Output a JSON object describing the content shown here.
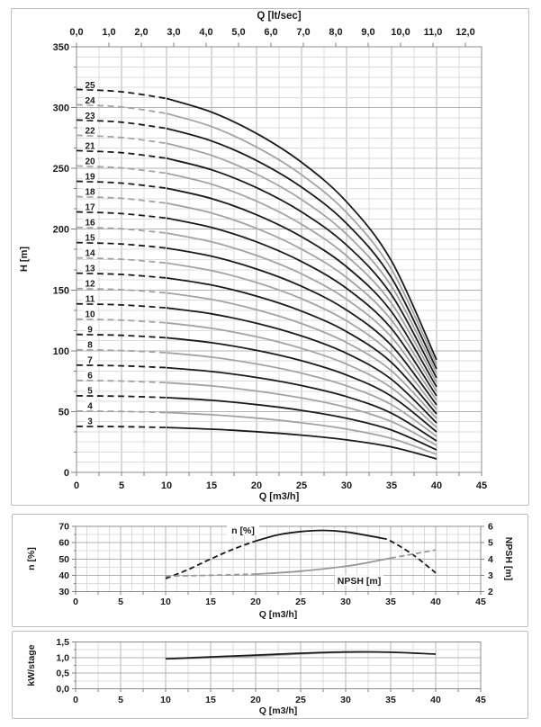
{
  "colors": {
    "black_curve": "#1a1a1a",
    "gray_curve": "#a3a3a3",
    "grid_minor": "#dcdcdc",
    "grid_major": "#b3b3b3",
    "axis_line": "#8c8c8c",
    "tick": "#7f7f7f",
    "text": "#1a1a1a"
  },
  "chart_data": [
    {
      "id": "head_chart",
      "type": "line",
      "top_axis": {
        "title": "Q [lt/sec]",
        "tick_values": [
          0,
          1,
          2,
          3,
          4,
          5,
          6,
          7,
          8,
          9,
          10,
          11,
          12
        ],
        "tick_labels": [
          "0,0",
          "1,0",
          "2,0",
          "3,0",
          "4,0",
          "5,0",
          "6,0",
          "7,0",
          "8,0",
          "9,0",
          "10,0",
          "11,0",
          "12,0"
        ],
        "m3h_per_unit": 3.6
      },
      "x_axis": {
        "title": "Q [m3/h]",
        "min": 0,
        "max": 45,
        "tick_values": [
          0,
          5,
          10,
          15,
          20,
          25,
          30,
          35,
          40,
          45
        ],
        "tick_labels": [
          "0",
          "5",
          "10",
          "15",
          "20",
          "25",
          "30",
          "35",
          "40",
          "45"
        ],
        "minor_step": 2.5
      },
      "y_axis": {
        "title": "H [m]",
        "min": 0,
        "max": 350,
        "tick_values": [
          0,
          50,
          100,
          150,
          200,
          250,
          300,
          350
        ],
        "tick_labels": [
          "0",
          "50",
          "100",
          "150",
          "200",
          "250",
          "300",
          "350"
        ],
        "minor_step": 8.3333,
        "minor_tick_step": 16.6667
      },
      "stages": [
        3,
        4,
        5,
        6,
        7,
        8,
        9,
        10,
        11,
        12,
        13,
        14,
        15,
        16,
        17,
        18,
        19,
        20,
        21,
        22,
        23,
        24,
        25
      ],
      "unit_head_curve": {
        "q": [
          0,
          5,
          10,
          15,
          20,
          25,
          30,
          35,
          40
        ],
        "h_per_stage": [
          12.6,
          12.52,
          12.3,
          11.85,
          11.15,
          10.2,
          8.9,
          6.95,
          3.7
        ]
      },
      "dashed_below_q": 10,
      "stage_label_q": 1.8
    },
    {
      "id": "efficiency_npsh_chart",
      "type": "line",
      "x_axis": {
        "title": "Q [m3/h]",
        "min": 0,
        "max": 45,
        "tick_values": [
          0,
          5,
          10,
          15,
          20,
          25,
          30,
          35,
          40,
          45
        ],
        "tick_labels": [
          "0",
          "5",
          "10",
          "15",
          "20",
          "25",
          "30",
          "35",
          "40",
          "45"
        ],
        "minor_step": 1.25
      },
      "y_left_axis": {
        "title": "n [%]",
        "min": 30,
        "max": 70,
        "tick_values": [
          30,
          40,
          50,
          60,
          70
        ],
        "tick_labels": [
          "30",
          "40",
          "50",
          "60",
          "70"
        ],
        "minor_step": 5
      },
      "y_right_axis": {
        "title": "NPSH [m]",
        "min": 2,
        "max": 6,
        "tick_values": [
          2,
          3,
          4,
          5,
          6
        ],
        "tick_labels": [
          "2",
          "3",
          "4",
          "5",
          "6"
        ]
      },
      "series": [
        {
          "name": "n [%]",
          "axis": "left",
          "color": "#1a1a1a",
          "q": [
            10,
            12.5,
            15,
            17.5,
            20,
            22.5,
            25,
            27.5,
            30,
            32.5,
            34,
            35,
            37.5,
            40
          ],
          "v": [
            38,
            43.5,
            50,
            56,
            61,
            64.8,
            66.8,
            67.5,
            66.6,
            64.3,
            62.8,
            61,
            52.5,
            41.5
          ],
          "solid_range": [
            20,
            34
          ],
          "label": {
            "text": "n [%]",
            "q": 18.6,
            "value": 67.8
          }
        },
        {
          "name": "NPSH [m]",
          "axis": "right",
          "color": "#989898",
          "q": [
            10,
            15,
            20,
            25,
            30,
            32.5,
            35,
            37.5,
            40
          ],
          "v": [
            2.95,
            3.0,
            3.07,
            3.25,
            3.55,
            3.78,
            4.05,
            4.3,
            4.55
          ],
          "solid_range": [
            20,
            35
          ],
          "label": {
            "text": "NPSH [m]",
            "q": 31.5,
            "value": 2.68
          }
        }
      ]
    },
    {
      "id": "power_chart",
      "type": "line",
      "x_axis": {
        "title": "Q [m3/h]",
        "min": 0,
        "max": 45,
        "tick_values": [
          0,
          5,
          10,
          15,
          20,
          25,
          30,
          35,
          40,
          45
        ],
        "tick_labels": [
          "0",
          "5",
          "10",
          "15",
          "20",
          "25",
          "30",
          "35",
          "40",
          "45"
        ],
        "minor_step": 2.5
      },
      "y_axis": {
        "title": "kW/stage",
        "min": 0,
        "max": 1.5,
        "tick_values": [
          0,
          0.5,
          1,
          1.5
        ],
        "tick_labels": [
          "0,0",
          "0,5",
          "1,0",
          "1,5"
        ],
        "minor_step": 0.25
      },
      "series": [
        {
          "name": "kW/stage gray",
          "color": "#a6a6a6",
          "q": [
            10,
            15,
            20,
            25,
            30,
            35,
            40
          ],
          "v": [
            0.95,
            0.99,
            1.04,
            1.11,
            1.16,
            1.17,
            1.12
          ],
          "solid_range": [
            10,
            40
          ]
        },
        {
          "name": "kW/stage black",
          "color": "#1a1a1a",
          "q": [
            10,
            15,
            20,
            25,
            30,
            35,
            40
          ],
          "v": [
            0.96,
            1.02,
            1.08,
            1.14,
            1.18,
            1.17,
            1.11
          ],
          "solid_range": [
            10,
            40
          ]
        }
      ]
    }
  ]
}
